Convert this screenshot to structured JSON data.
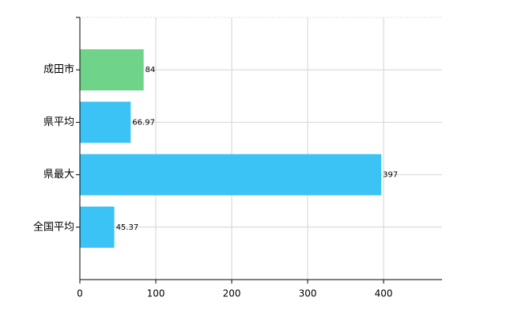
{
  "chart_data": {
    "type": "hbar",
    "categories": [
      "成田市",
      "県平均",
      "県最大",
      "全国平均"
    ],
    "values": [
      84,
      66.97,
      397,
      45.37
    ],
    "colors": [
      "#6fd38a",
      "#3cc3f5",
      "#3cc3f5",
      "#3cc3f5"
    ],
    "xlim": [
      0,
      477
    ],
    "xticks": [
      0,
      100,
      200,
      300,
      400
    ],
    "grid": true
  }
}
